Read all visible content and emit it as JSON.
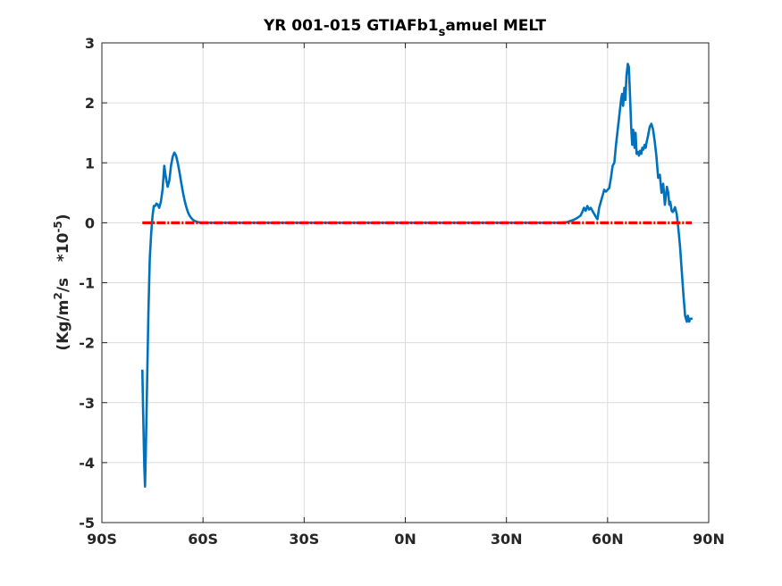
{
  "colors": {
    "background": "#ffffff",
    "axes": "#262626",
    "grid": "#dcdcdc",
    "series_melt": "#0072bd",
    "series_zero": "#ff0000"
  },
  "chart_data": {
    "type": "line",
    "title": {
      "prefix": "YR 001-015 GTIAFb1",
      "subscript": "s",
      "suffix": "amuel MELT"
    },
    "xlabel": "",
    "ylabel": {
      "part1": "(Kg/m",
      "sup1": "2",
      "part2": "/s   *10",
      "sup2": "-5",
      "part3": ")"
    },
    "xlim": [
      -90,
      90
    ],
    "ylim": [
      -5,
      3
    ],
    "grid": true,
    "x_ticks": [
      {
        "value": -90,
        "label": "90S"
      },
      {
        "value": -60,
        "label": "60S"
      },
      {
        "value": -30,
        "label": "30S"
      },
      {
        "value": 0,
        "label": "0N"
      },
      {
        "value": 30,
        "label": "30N"
      },
      {
        "value": 60,
        "label": "60N"
      },
      {
        "value": 90,
        "label": "90N"
      }
    ],
    "y_ticks": [
      {
        "value": 3,
        "label": "3"
      },
      {
        "value": 2,
        "label": "2"
      },
      {
        "value": 1,
        "label": "1"
      },
      {
        "value": 0,
        "label": "0"
      },
      {
        "value": -1,
        "label": "-1"
      },
      {
        "value": -2,
        "label": "-2"
      },
      {
        "value": -3,
        "label": "-3"
      },
      {
        "value": -4,
        "label": "-4"
      },
      {
        "value": -5,
        "label": "-5"
      }
    ],
    "series": [
      {
        "style": "solid",
        "color": "#0072bd",
        "x": [
          -78.0,
          -77.8,
          -77.6,
          -77.4,
          -77.2,
          -77.0,
          -76.8,
          -76.5,
          -76.2,
          -75.8,
          -75.4,
          -75.0,
          -74.6,
          -74.2,
          -73.8,
          -73.4,
          -73.0,
          -72.5,
          -72.0,
          -71.5,
          -71.0,
          -70.5,
          -70.0,
          -69.5,
          -69.0,
          -68.5,
          -68.0,
          -67.5,
          -67.0,
          -66.5,
          -66.0,
          -65.5,
          -65.0,
          -64.5,
          -64.0,
          -63.5,
          -63.0,
          -62.5,
          -62.0,
          -61.5,
          -61.0,
          -60.5,
          -60.0,
          -59.0,
          -58.0,
          -56.0,
          -50.0,
          -30.0,
          0.0,
          30.0,
          46.0,
          48.0,
          49.0,
          50.0,
          51.0,
          52.0,
          52.5,
          53.0,
          53.5,
          54.0,
          54.5,
          55.0,
          55.5,
          56.0,
          56.5,
          57.0,
          57.5,
          58.0,
          58.5,
          59.0,
          59.5,
          60.0,
          60.5,
          61.0,
          61.5,
          62.0,
          62.5,
          63.0,
          63.5,
          64.0,
          64.3,
          64.6,
          65.0,
          65.3,
          65.6,
          66.0,
          66.3,
          66.6,
          67.0,
          67.3,
          67.6,
          68.0,
          68.3,
          68.6,
          69.0,
          69.3,
          69.6,
          70.0,
          70.3,
          70.6,
          71.0,
          71.3,
          71.6,
          72.0,
          72.5,
          73.0,
          73.5,
          74.0,
          74.5,
          75.0,
          75.5,
          76.0,
          76.5,
          77.0,
          77.3,
          77.6,
          78.0,
          78.3,
          78.6,
          79.0,
          79.3,
          79.6,
          80.0,
          80.5,
          81.0,
          81.5,
          82.0,
          82.5,
          83.0,
          83.5,
          83.8,
          84.0,
          84.2,
          84.5,
          84.8,
          85.0,
          85.2
        ],
        "values": [
          -2.45,
          -3.05,
          -3.6,
          -4.1,
          -4.4,
          -3.9,
          -3.3,
          -2.4,
          -1.5,
          -0.6,
          -0.2,
          0.1,
          0.28,
          0.28,
          0.32,
          0.3,
          0.25,
          0.35,
          0.55,
          0.95,
          0.75,
          0.6,
          0.7,
          0.95,
          1.1,
          1.17,
          1.12,
          1.0,
          0.85,
          0.68,
          0.52,
          0.38,
          0.27,
          0.18,
          0.12,
          0.08,
          0.05,
          0.03,
          0.02,
          0.01,
          0.005,
          0.002,
          0.001,
          0.0,
          0.0,
          0.0,
          0.0,
          0.0,
          0.0,
          0.0,
          0.0,
          0.01,
          0.03,
          0.05,
          0.08,
          0.12,
          0.18,
          0.25,
          0.2,
          0.28,
          0.22,
          0.25,
          0.2,
          0.15,
          0.1,
          0.06,
          0.25,
          0.35,
          0.45,
          0.55,
          0.52,
          0.55,
          0.58,
          0.75,
          0.95,
          1.0,
          1.3,
          1.55,
          1.8,
          2.05,
          2.15,
          1.95,
          2.25,
          2.05,
          2.45,
          2.65,
          2.6,
          2.2,
          1.6,
          1.3,
          1.55,
          1.25,
          1.5,
          1.15,
          1.18,
          1.12,
          1.2,
          1.15,
          1.25,
          1.22,
          1.3,
          1.25,
          1.35,
          1.45,
          1.6,
          1.65,
          1.55,
          1.35,
          1.1,
          0.75,
          0.8,
          0.5,
          0.65,
          0.3,
          0.45,
          0.6,
          0.5,
          0.3,
          0.35,
          0.2,
          0.18,
          0.2,
          0.26,
          0.15,
          -0.1,
          -0.4,
          -0.8,
          -1.2,
          -1.55,
          -1.65,
          -1.55,
          -1.6,
          -1.65,
          -1.6,
          -1.6,
          -1.6,
          -1.6
        ]
      },
      {
        "style": "dash-dot",
        "color": "#ff0000",
        "x": [
          -78.0,
          85.0
        ],
        "values": [
          0.0,
          0.0
        ]
      }
    ]
  }
}
